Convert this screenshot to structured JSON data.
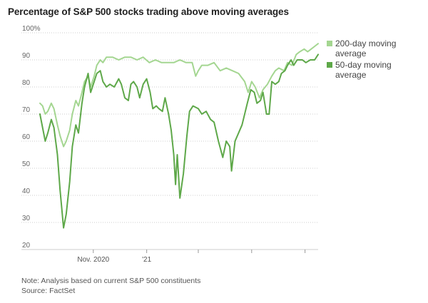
{
  "header": {
    "title": "Percentage of S&P 500 stocks trading above moving averages"
  },
  "footer": {
    "note": "Note: Analysis based on current S&P 500 constituents",
    "source": "Source: FactSet"
  },
  "colors": {
    "ma200": "#a4d691",
    "ma50": "#5ea849",
    "grid": "#cccccc",
    "axis": "#999999"
  },
  "chart_data": {
    "type": "line",
    "title": "Percentage of S&P 500 stocks trading above moving averages",
    "xlabel": "",
    "ylabel": "",
    "ylim": [
      20,
      100
    ],
    "xlim": [
      "2020-09-01",
      "2021-07-16"
    ],
    "yticks": [
      20,
      30,
      40,
      50,
      60,
      70,
      80,
      90,
      100
    ],
    "ytick_labels": [
      "20",
      "30",
      "40",
      "50",
      "60",
      "70",
      "80",
      "90",
      "100%"
    ],
    "xtick_labels": [
      {
        "date": "2020-11-01",
        "label": "Nov. 2020"
      },
      {
        "date": "2021-01-01",
        "label": "'21"
      }
    ],
    "xtick_marks": [
      "2020-11-01",
      "2021-01-01",
      "2021-03-01",
      "2021-05-01",
      "2021-07-01"
    ],
    "grid": true,
    "legend_position": "right",
    "series": [
      {
        "name": "200-day moving average",
        "color": "#a4d691",
        "points": [
          [
            "2020-09-01",
            74
          ],
          [
            "2020-09-04",
            73
          ],
          [
            "2020-09-07",
            70
          ],
          [
            "2020-09-10",
            71
          ],
          [
            "2020-09-14",
            74
          ],
          [
            "2020-09-17",
            72
          ],
          [
            "2020-09-21",
            66
          ],
          [
            "2020-09-24",
            62
          ],
          [
            "2020-09-28",
            58
          ],
          [
            "2020-10-01",
            60
          ],
          [
            "2020-10-05",
            64
          ],
          [
            "2020-10-08",
            70
          ],
          [
            "2020-10-12",
            75
          ],
          [
            "2020-10-15",
            73
          ],
          [
            "2020-10-19",
            78
          ],
          [
            "2020-10-22",
            82
          ],
          [
            "2020-10-26",
            84
          ],
          [
            "2020-10-29",
            80
          ],
          [
            "2020-11-02",
            84
          ],
          [
            "2020-11-05",
            88
          ],
          [
            "2020-11-09",
            90
          ],
          [
            "2020-11-12",
            89
          ],
          [
            "2020-11-16",
            91
          ],
          [
            "2020-11-23",
            91
          ],
          [
            "2020-11-30",
            90
          ],
          [
            "2020-12-07",
            91
          ],
          [
            "2020-12-14",
            91
          ],
          [
            "2020-12-21",
            90
          ],
          [
            "2020-12-28",
            91
          ],
          [
            "2021-01-04",
            89
          ],
          [
            "2021-01-11",
            90
          ],
          [
            "2021-01-18",
            89
          ],
          [
            "2021-01-25",
            89
          ],
          [
            "2021-02-01",
            89
          ],
          [
            "2021-02-08",
            90
          ],
          [
            "2021-02-15",
            89
          ],
          [
            "2021-02-22",
            89
          ],
          [
            "2021-02-26",
            84
          ],
          [
            "2021-03-01",
            86
          ],
          [
            "2021-03-05",
            88
          ],
          [
            "2021-03-12",
            88
          ],
          [
            "2021-03-19",
            89
          ],
          [
            "2021-03-26",
            86
          ],
          [
            "2021-04-02",
            87
          ],
          [
            "2021-04-09",
            86
          ],
          [
            "2021-04-16",
            85
          ],
          [
            "2021-04-23",
            82
          ],
          [
            "2021-04-27",
            78
          ],
          [
            "2021-05-01",
            82
          ],
          [
            "2021-05-05",
            80
          ],
          [
            "2021-05-10",
            76
          ],
          [
            "2021-05-14",
            79
          ],
          [
            "2021-05-19",
            81
          ],
          [
            "2021-05-24",
            84
          ],
          [
            "2021-05-28",
            86
          ],
          [
            "2021-06-01",
            87
          ],
          [
            "2021-06-07",
            86
          ],
          [
            "2021-06-11",
            89
          ],
          [
            "2021-06-16",
            88
          ],
          [
            "2021-06-21",
            92
          ],
          [
            "2021-06-25",
            93
          ],
          [
            "2021-06-30",
            94
          ],
          [
            "2021-07-04",
            93
          ],
          [
            "2021-07-08",
            94
          ],
          [
            "2021-07-12",
            95
          ],
          [
            "2021-07-16",
            96
          ]
        ]
      },
      {
        "name": "50-day moving average",
        "color": "#5ea849",
        "points": [
          [
            "2020-09-01",
            70
          ],
          [
            "2020-09-04",
            65
          ],
          [
            "2020-09-07",
            60
          ],
          [
            "2020-09-10",
            63
          ],
          [
            "2020-09-14",
            68
          ],
          [
            "2020-09-17",
            65
          ],
          [
            "2020-09-21",
            55
          ],
          [
            "2020-09-24",
            42
          ],
          [
            "2020-09-28",
            28
          ],
          [
            "2020-10-01",
            33
          ],
          [
            "2020-10-05",
            45
          ],
          [
            "2020-10-08",
            58
          ],
          [
            "2020-10-12",
            66
          ],
          [
            "2020-10-15",
            63
          ],
          [
            "2020-10-19",
            74
          ],
          [
            "2020-10-22",
            80
          ],
          [
            "2020-10-26",
            85
          ],
          [
            "2020-10-29",
            78
          ],
          [
            "2020-11-02",
            82
          ],
          [
            "2020-11-05",
            85
          ],
          [
            "2020-11-09",
            86
          ],
          [
            "2020-11-12",
            82
          ],
          [
            "2020-11-16",
            80
          ],
          [
            "2020-11-20",
            81
          ],
          [
            "2020-11-25",
            80
          ],
          [
            "2020-11-30",
            83
          ],
          [
            "2020-12-03",
            81
          ],
          [
            "2020-12-07",
            76
          ],
          [
            "2020-12-11",
            75
          ],
          [
            "2020-12-14",
            81
          ],
          [
            "2020-12-17",
            82
          ],
          [
            "2020-12-21",
            80
          ],
          [
            "2020-12-24",
            76
          ],
          [
            "2020-12-28",
            81
          ],
          [
            "2021-01-01",
            83
          ],
          [
            "2021-01-05",
            78
          ],
          [
            "2021-01-08",
            72
          ],
          [
            "2021-01-12",
            73
          ],
          [
            "2021-01-15",
            72
          ],
          [
            "2021-01-19",
            71
          ],
          [
            "2021-01-22",
            76
          ],
          [
            "2021-01-26",
            70
          ],
          [
            "2021-01-29",
            64
          ],
          [
            "2021-02-01",
            55
          ],
          [
            "2021-02-03",
            44
          ],
          [
            "2021-02-05",
            55
          ],
          [
            "2021-02-08",
            39
          ],
          [
            "2021-02-12",
            48
          ],
          [
            "2021-02-16",
            62
          ],
          [
            "2021-02-19",
            71
          ],
          [
            "2021-02-23",
            73
          ],
          [
            "2021-03-01",
            72
          ],
          [
            "2021-03-05",
            70
          ],
          [
            "2021-03-10",
            71
          ],
          [
            "2021-03-15",
            68
          ],
          [
            "2021-03-19",
            67
          ],
          [
            "2021-03-24",
            60
          ],
          [
            "2021-03-29",
            54
          ],
          [
            "2021-04-02",
            60
          ],
          [
            "2021-04-06",
            58
          ],
          [
            "2021-04-08",
            49
          ],
          [
            "2021-04-12",
            60
          ],
          [
            "2021-04-16",
            63
          ],
          [
            "2021-04-20",
            66
          ],
          [
            "2021-04-26",
            74
          ],
          [
            "2021-04-30",
            79
          ],
          [
            "2021-05-04",
            78
          ],
          [
            "2021-05-07",
            74
          ],
          [
            "2021-05-11",
            75
          ],
          [
            "2021-05-14",
            78
          ],
          [
            "2021-05-18",
            70
          ],
          [
            "2021-05-21",
            70
          ],
          [
            "2021-05-24",
            82
          ],
          [
            "2021-05-28",
            81
          ],
          [
            "2021-06-01",
            82
          ],
          [
            "2021-06-04",
            85
          ],
          [
            "2021-06-08",
            86
          ],
          [
            "2021-06-11",
            88
          ],
          [
            "2021-06-15",
            90
          ],
          [
            "2021-06-18",
            88
          ],
          [
            "2021-06-22",
            90
          ],
          [
            "2021-06-28",
            90
          ],
          [
            "2021-07-02",
            89
          ],
          [
            "2021-07-07",
            90
          ],
          [
            "2021-07-12",
            90
          ],
          [
            "2021-07-16",
            92
          ]
        ]
      }
    ]
  }
}
